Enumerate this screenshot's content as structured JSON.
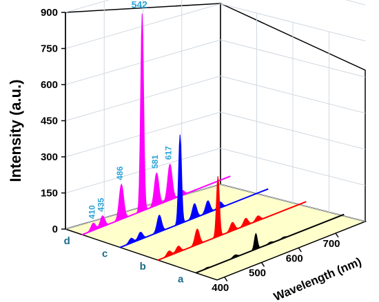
{
  "chart_data": {
    "type": "area",
    "title": "",
    "ylabel": "Intensity (a.u.)",
    "xlabel": "Wavelength (nm)",
    "ylim": [
      0,
      900
    ],
    "yticks": [
      "0",
      "150",
      "300",
      "450",
      "600",
      "750",
      "900"
    ],
    "xlim": [
      380,
      780
    ],
    "xticks": [
      "400",
      "500",
      "600",
      "700"
    ],
    "depth_labels": [
      "a",
      "b",
      "c",
      "d"
    ],
    "colors": {
      "a": "#000000",
      "b": "#ff0000",
      "c": "#0000ff",
      "d": "#ff00ff",
      "floor": "#ffffcc",
      "peak_labels": "#29a3d6"
    },
    "series": [
      {
        "name": "a",
        "peaks": [
          [
            410,
            4
          ],
          [
            486,
            10
          ],
          [
            542,
            65
          ],
          [
            581,
            6
          ],
          [
            617,
            5
          ]
        ]
      },
      {
        "name": "b",
        "peaks": [
          [
            410,
            20
          ],
          [
            435,
            25
          ],
          [
            486,
            65
          ],
          [
            542,
            250
          ],
          [
            581,
            35
          ],
          [
            617,
            30
          ],
          [
            650,
            20
          ]
        ]
      },
      {
        "name": "c",
        "peaks": [
          [
            410,
            20
          ],
          [
            435,
            30
          ],
          [
            486,
            70
          ],
          [
            542,
            370
          ],
          [
            581,
            60
          ],
          [
            617,
            50
          ],
          [
            650,
            25
          ]
        ]
      },
      {
        "name": "d",
        "peaks": [
          [
            410,
            30
          ],
          [
            435,
            45
          ],
          [
            486,
            145
          ],
          [
            542,
            820
          ],
          [
            581,
            135
          ],
          [
            617,
            150
          ],
          [
            650,
            20
          ]
        ]
      }
    ],
    "peak_labels": [
      "410",
      "435",
      "486",
      "542",
      "581",
      "617"
    ]
  }
}
